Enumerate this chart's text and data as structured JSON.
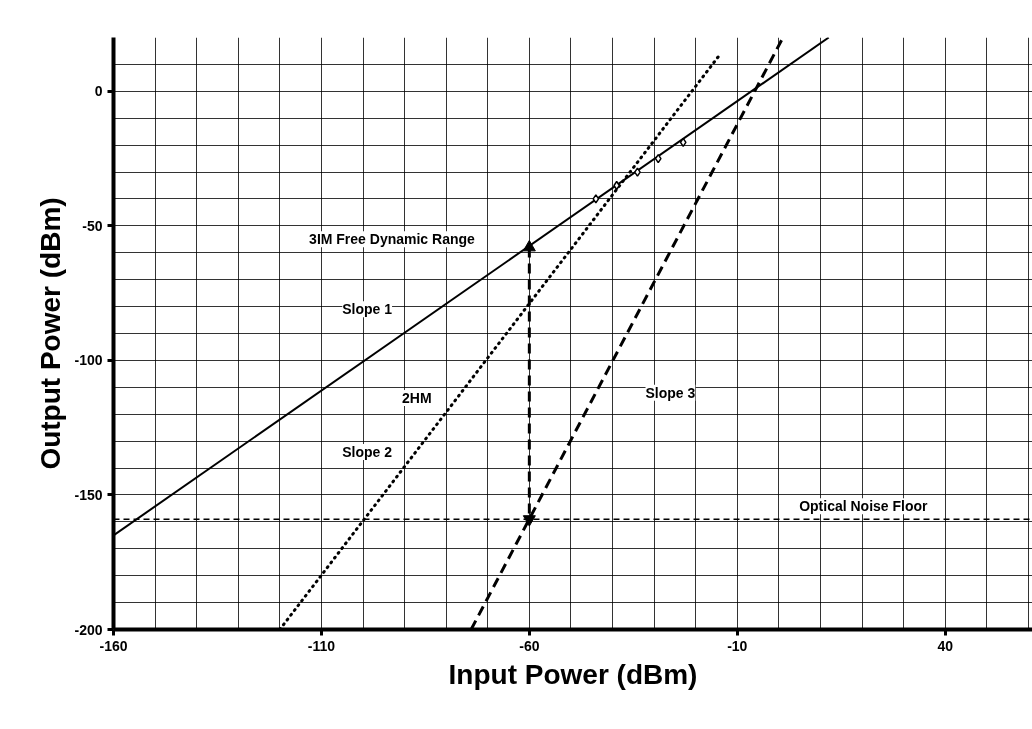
{
  "chart_data": {
    "type": "line",
    "xlabel": "Input Power (dBm)",
    "ylabel": "Output Power (dBm)",
    "xlim": [
      -160,
      61
    ],
    "ylim": [
      -200,
      20
    ],
    "xticks": [
      -160,
      {
        "value": -150,
        "label": null
      },
      {
        "value": -140,
        "label": null
      },
      {
        "value": -130,
        "label": null
      },
      {
        "value": -120,
        "label": null
      },
      -110,
      {
        "value": -100,
        "label": null
      },
      {
        "value": -90,
        "label": null
      },
      {
        "value": -80,
        "label": null
      },
      {
        "value": -70,
        "label": null
      },
      -60,
      {
        "value": -50,
        "label": null
      },
      {
        "value": -40,
        "label": null
      },
      {
        "value": -30,
        "label": null
      },
      {
        "value": -20,
        "label": null
      },
      -10,
      {
        "value": 0,
        "label": null
      },
      {
        "value": 10,
        "label": null
      },
      {
        "value": 20,
        "label": null
      },
      {
        "value": 30,
        "label": null
      },
      40,
      {
        "value": 50,
        "label": null
      },
      {
        "value": 60,
        "label": null
      }
    ],
    "yticks": [
      -200,
      {
        "value": -190,
        "label": null
      },
      {
        "value": -180,
        "label": null
      },
      {
        "value": -170,
        "label": null
      },
      {
        "value": -160,
        "label": null
      },
      -150,
      {
        "value": -140,
        "label": null
      },
      {
        "value": -130,
        "label": null
      },
      {
        "value": -120,
        "label": null
      },
      {
        "value": -110,
        "label": null
      },
      -100,
      {
        "value": -90,
        "label": null
      },
      {
        "value": -80,
        "label": null
      },
      {
        "value": -70,
        "label": null
      },
      {
        "value": -60,
        "label": null
      },
      -50,
      {
        "value": -40,
        "label": null
      },
      {
        "value": -30,
        "label": null
      },
      {
        "value": -20,
        "label": null
      },
      {
        "value": -10,
        "label": null
      },
      0,
      {
        "value": 10,
        "label": null
      }
    ],
    "grid": true,
    "series": [
      {
        "color": "#000000",
        "line_style": "solid",
        "x": [
          -160,
          12
        ],
        "values": [
          -165,
          20
        ]
      },
      {
        "color": "#000000",
        "line_style": "dotted",
        "x": [
          -120,
          -14
        ],
        "values": [
          -200,
          14
        ]
      },
      {
        "color": "#000000",
        "line_style": "dashed",
        "x": [
          -74,
          1
        ],
        "values": [
          -200,
          20
        ]
      },
      {
        "type": "scatter",
        "color": "#000000",
        "marker": "diamond",
        "x": [
          -44,
          -39,
          -34,
          -29,
          -23
        ],
        "values": [
          -40,
          -35,
          -30,
          -25,
          -19
        ]
      },
      {
        "color": "#000000",
        "line_style": "dashed",
        "marker": "triangle",
        "x": [
          -60,
          -60
        ],
        "values": [
          -58,
          -159
        ]
      }
    ],
    "ref_lines": [
      {
        "axis": "y",
        "value": -159,
        "label": "Optical Noise Floor",
        "color": "#000000",
        "line_style": "dashed"
      }
    ],
    "annotations": [
      "3IM Free Dynamic Range",
      "Slope 1",
      "2HM",
      "Slope 2",
      "Slope 3"
    ]
  }
}
